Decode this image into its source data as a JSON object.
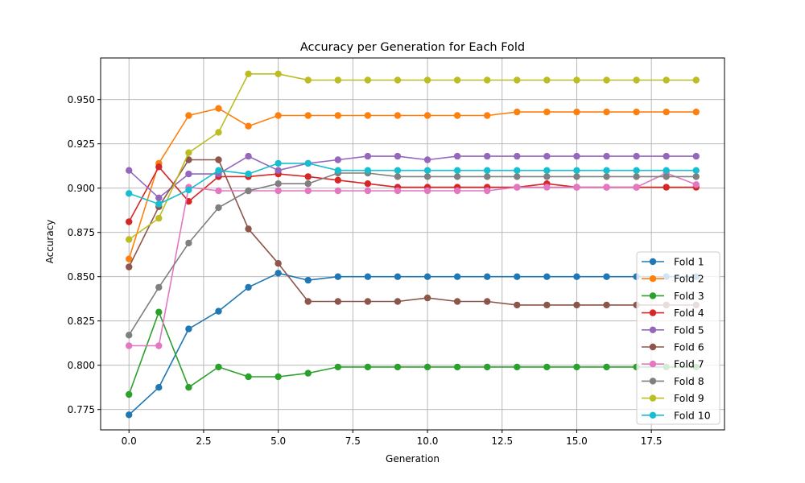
{
  "chart_data": {
    "type": "line",
    "title": "Accuracy per Generation for Each Fold",
    "xlabel": "Generation",
    "ylabel": "Accuracy",
    "xlim": [
      -0.95,
      19.95
    ],
    "ylim": [
      0.7635,
      0.9735
    ],
    "xticks": [
      0.0,
      2.5,
      5.0,
      7.5,
      10.0,
      12.5,
      15.0,
      17.5
    ],
    "xtick_labels": [
      "0.0",
      "2.5",
      "5.0",
      "7.5",
      "10.0",
      "12.5",
      "15.0",
      "17.5"
    ],
    "yticks": [
      0.775,
      0.8,
      0.825,
      0.85,
      0.875,
      0.9,
      0.925,
      0.95
    ],
    "ytick_labels": [
      "0.775",
      "0.800",
      "0.825",
      "0.850",
      "0.875",
      "0.900",
      "0.925",
      "0.950"
    ],
    "grid": true,
    "legend_position": "lower-right",
    "x": [
      0,
      1,
      2,
      3,
      4,
      5,
      6,
      7,
      8,
      9,
      10,
      11,
      12,
      13,
      14,
      15,
      16,
      17,
      18,
      19
    ],
    "series": [
      {
        "name": "Fold 1",
        "color": "#1f77b4",
        "values": [
          0.772,
          0.7875,
          0.8205,
          0.8305,
          0.844,
          0.852,
          0.848,
          0.85,
          0.85,
          0.85,
          0.85,
          0.85,
          0.85,
          0.85,
          0.85,
          0.85,
          0.85,
          0.85,
          0.85,
          0.85
        ]
      },
      {
        "name": "Fold 2",
        "color": "#ff7f0e",
        "values": [
          0.86,
          0.914,
          0.941,
          0.945,
          0.935,
          0.941,
          0.941,
          0.941,
          0.941,
          0.941,
          0.941,
          0.941,
          0.941,
          0.943,
          0.943,
          0.943,
          0.943,
          0.943,
          0.943,
          0.943
        ]
      },
      {
        "name": "Fold 3",
        "color": "#2ca02c",
        "values": [
          0.7835,
          0.83,
          0.7875,
          0.799,
          0.7935,
          0.7935,
          0.7955,
          0.799,
          0.799,
          0.799,
          0.799,
          0.799,
          0.799,
          0.799,
          0.799,
          0.799,
          0.799,
          0.799,
          0.799,
          0.799
        ]
      },
      {
        "name": "Fold 4",
        "color": "#d62728",
        "values": [
          0.881,
          0.912,
          0.8925,
          0.9065,
          0.9065,
          0.908,
          0.9065,
          0.9045,
          0.9025,
          0.9005,
          0.9005,
          0.9005,
          0.9005,
          0.9005,
          0.9025,
          0.9005,
          0.9005,
          0.9005,
          0.9005,
          0.9005
        ]
      },
      {
        "name": "Fold 5",
        "color": "#9467bd",
        "values": [
          0.91,
          0.8945,
          0.908,
          0.908,
          0.918,
          0.91,
          0.914,
          0.916,
          0.918,
          0.918,
          0.916,
          0.918,
          0.918,
          0.918,
          0.918,
          0.918,
          0.918,
          0.918,
          0.918,
          0.918
        ]
      },
      {
        "name": "Fold 6",
        "color": "#8c564b",
        "values": [
          0.8555,
          0.8895,
          0.916,
          0.916,
          0.877,
          0.8575,
          0.836,
          0.836,
          0.836,
          0.836,
          0.838,
          0.836,
          0.836,
          0.834,
          0.834,
          0.834,
          0.834,
          0.834,
          0.834,
          0.834
        ]
      },
      {
        "name": "Fold 7",
        "color": "#e377c2",
        "values": [
          0.811,
          0.811,
          0.9005,
          0.8985,
          0.8985,
          0.8985,
          0.8985,
          0.8985,
          0.8985,
          0.8985,
          0.8985,
          0.8985,
          0.8985,
          0.9005,
          0.9005,
          0.9005,
          0.9005,
          0.9005,
          0.9085,
          0.902
        ]
      },
      {
        "name": "Fold 8",
        "color": "#7f7f7f",
        "values": [
          0.817,
          0.844,
          0.869,
          0.889,
          0.8985,
          0.9025,
          0.9025,
          0.9085,
          0.9085,
          0.9065,
          0.9065,
          0.9065,
          0.9065,
          0.9065,
          0.9065,
          0.9065,
          0.9065,
          0.9065,
          0.9065,
          0.9065
        ]
      },
      {
        "name": "Fold 9",
        "color": "#bcbd22",
        "values": [
          0.871,
          0.883,
          0.92,
          0.9315,
          0.9645,
          0.9645,
          0.961,
          0.961,
          0.961,
          0.961,
          0.961,
          0.961,
          0.961,
          0.961,
          0.961,
          0.961,
          0.961,
          0.961,
          0.961,
          0.961
        ]
      },
      {
        "name": "Fold 10",
        "color": "#17becf",
        "values": [
          0.897,
          0.891,
          0.899,
          0.91,
          0.908,
          0.914,
          0.914,
          0.91,
          0.91,
          0.91,
          0.91,
          0.91,
          0.91,
          0.91,
          0.91,
          0.91,
          0.91,
          0.91,
          0.91,
          0.91
        ]
      }
    ]
  }
}
